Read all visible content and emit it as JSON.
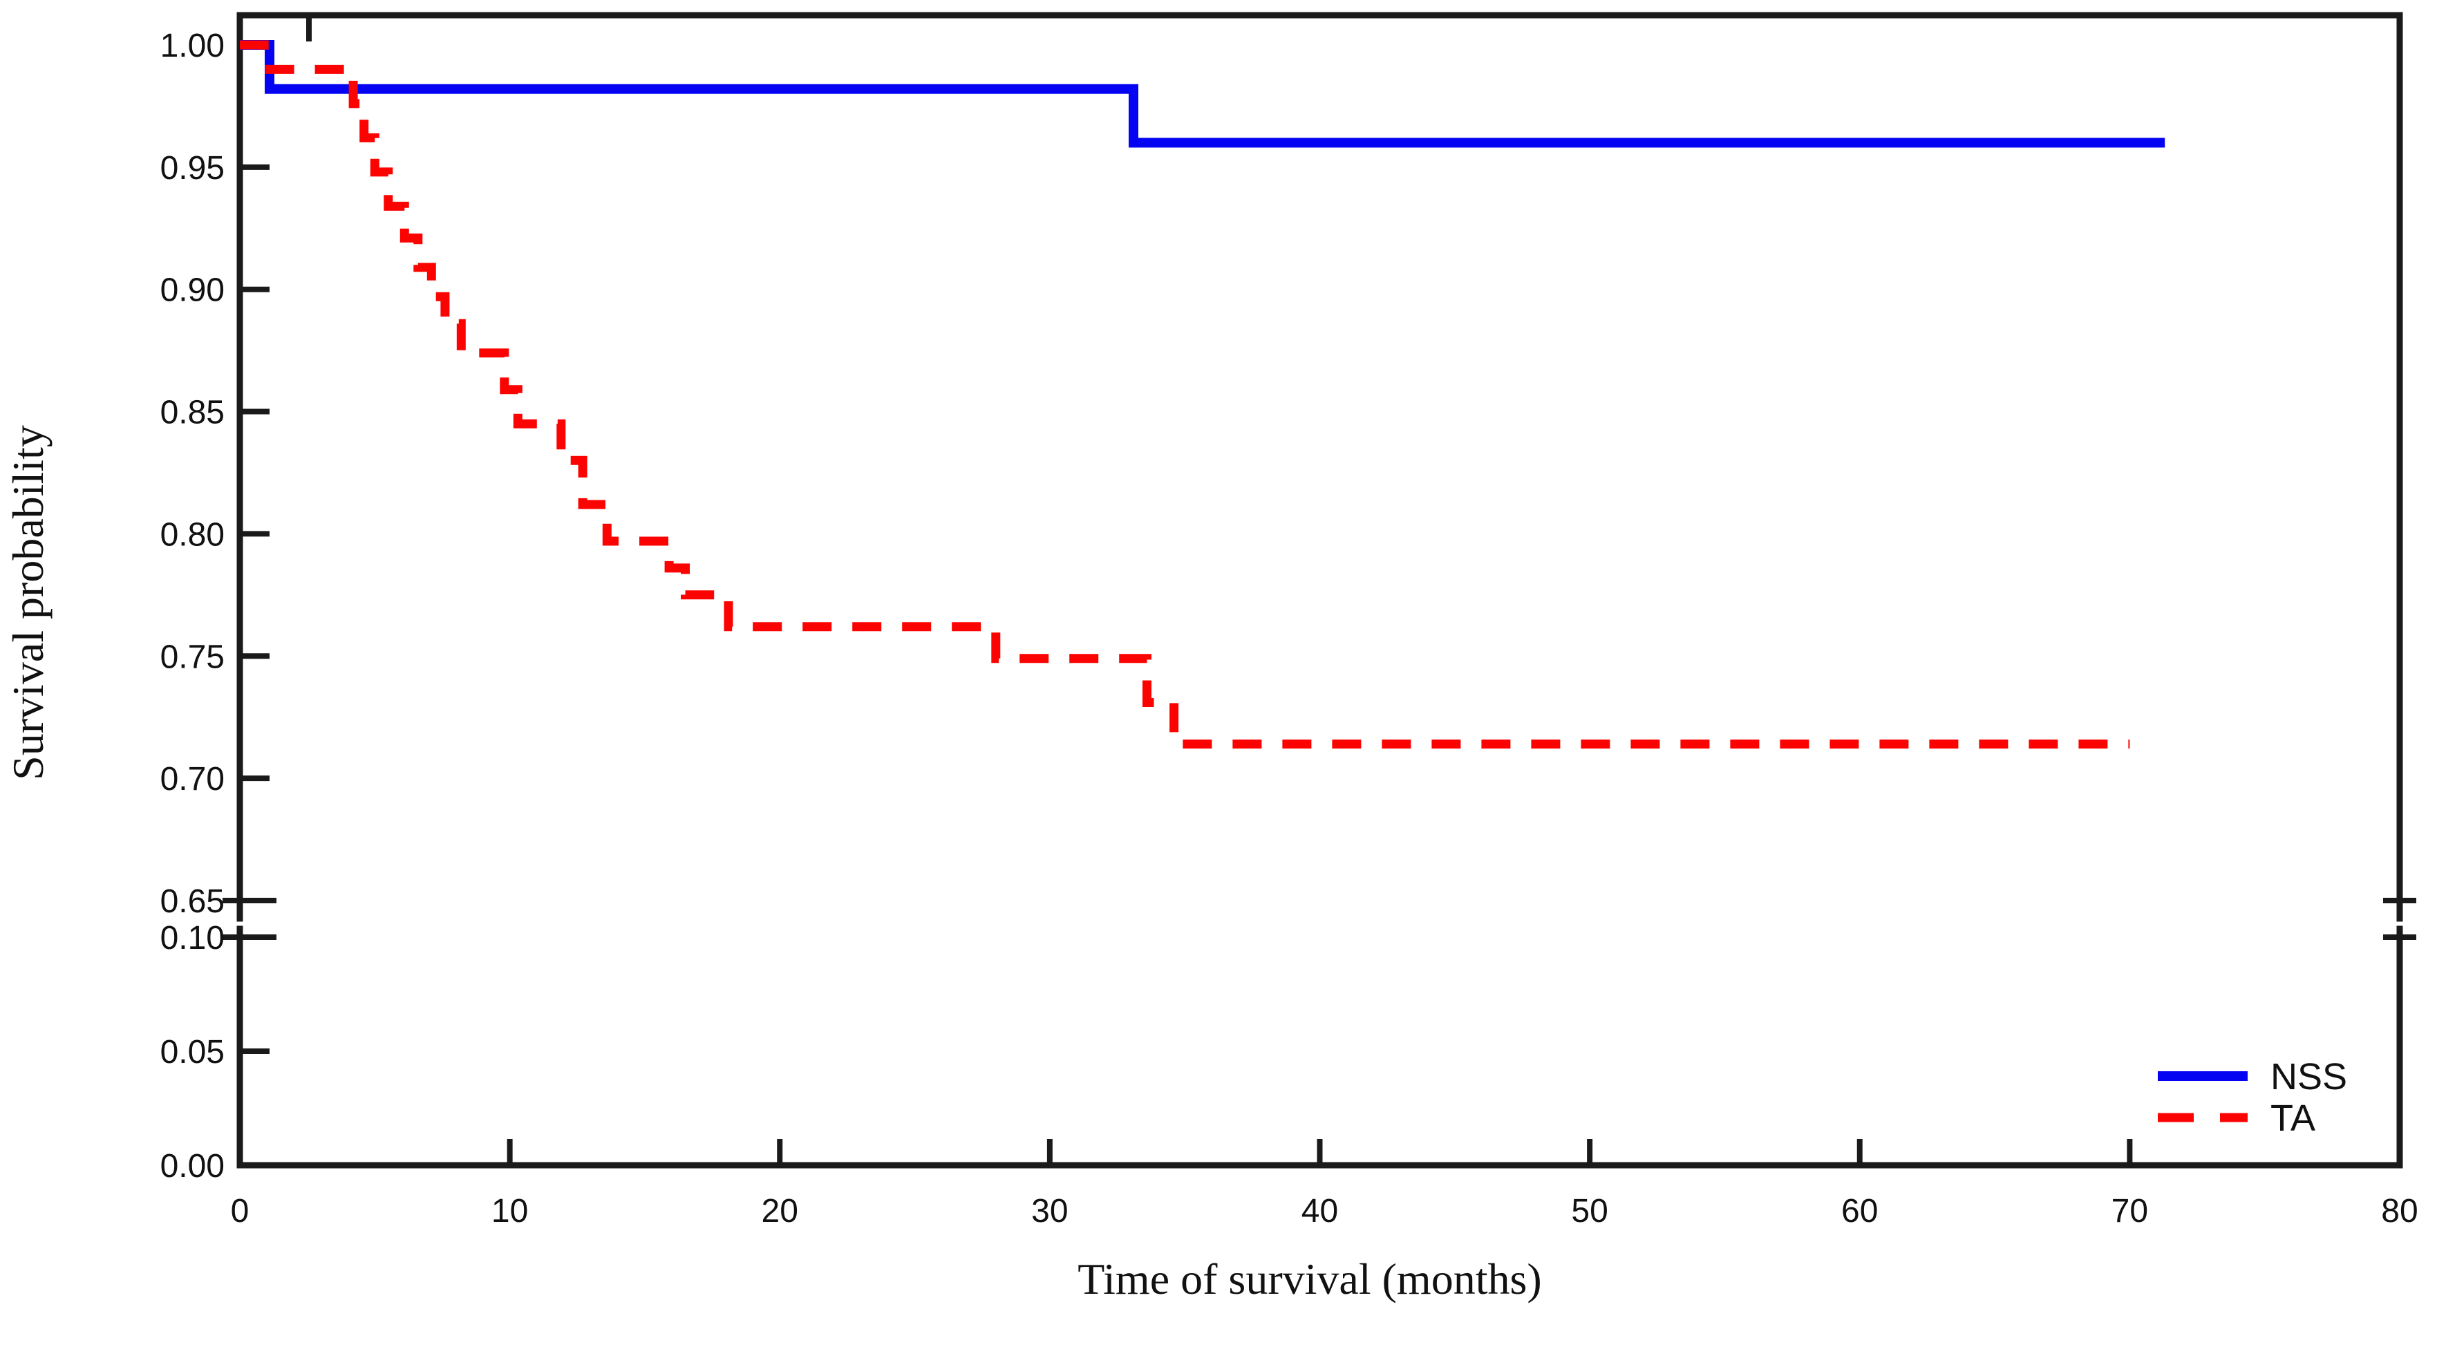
{
  "figure": {
    "background_color": "#ffffff",
    "axis_color": "#1a1a1a",
    "text_color": "#111111"
  },
  "chart_data": {
    "type": "line",
    "subtype": "kaplan-meier-step-survival",
    "title": "",
    "xlabel": "Time of survival (months)",
    "ylabel": "Survival probability",
    "xlim": [
      0,
      80
    ],
    "x_ticks": [
      0,
      10,
      20,
      30,
      40,
      50,
      60,
      70,
      80
    ],
    "y_axis_break": true,
    "y_upper_range": [
      0.65,
      1.0
    ],
    "y_lower_range": [
      0.0,
      0.1
    ],
    "y_upper_ticks": [
      1.0,
      0.95,
      0.9,
      0.85,
      0.8,
      0.75,
      0.7,
      0.65
    ],
    "y_lower_ticks": [
      0.1,
      0.05,
      0.0
    ],
    "grid": false,
    "legend_position": "lower-right-inside",
    "series": [
      {
        "name": "NSS",
        "color": "#0404f2",
        "line_style": "solid",
        "steps": [
          [
            0,
            1.0
          ],
          [
            1.1,
            0.982
          ],
          [
            33.1,
            0.96
          ]
        ],
        "end_time": 71.3
      },
      {
        "name": "TA",
        "color": "#fb0300",
        "line_style": "dashed",
        "steps": [
          [
            0,
            1.0
          ],
          [
            0.9,
            0.99
          ],
          [
            4.2,
            0.976
          ],
          [
            4.6,
            0.962
          ],
          [
            5.0,
            0.948
          ],
          [
            5.5,
            0.934
          ],
          [
            6.1,
            0.921
          ],
          [
            6.6,
            0.909
          ],
          [
            7.1,
            0.897
          ],
          [
            7.6,
            0.886
          ],
          [
            8.2,
            0.874
          ],
          [
            9.8,
            0.859
          ],
          [
            10.3,
            0.845
          ],
          [
            11.9,
            0.83
          ],
          [
            12.7,
            0.812
          ],
          [
            13.6,
            0.797
          ],
          [
            15.9,
            0.786
          ],
          [
            16.5,
            0.775
          ],
          [
            18.1,
            0.762
          ],
          [
            28.0,
            0.749
          ],
          [
            33.6,
            0.731
          ],
          [
            34.6,
            0.714
          ]
        ],
        "end_time": 70.0
      }
    ]
  }
}
